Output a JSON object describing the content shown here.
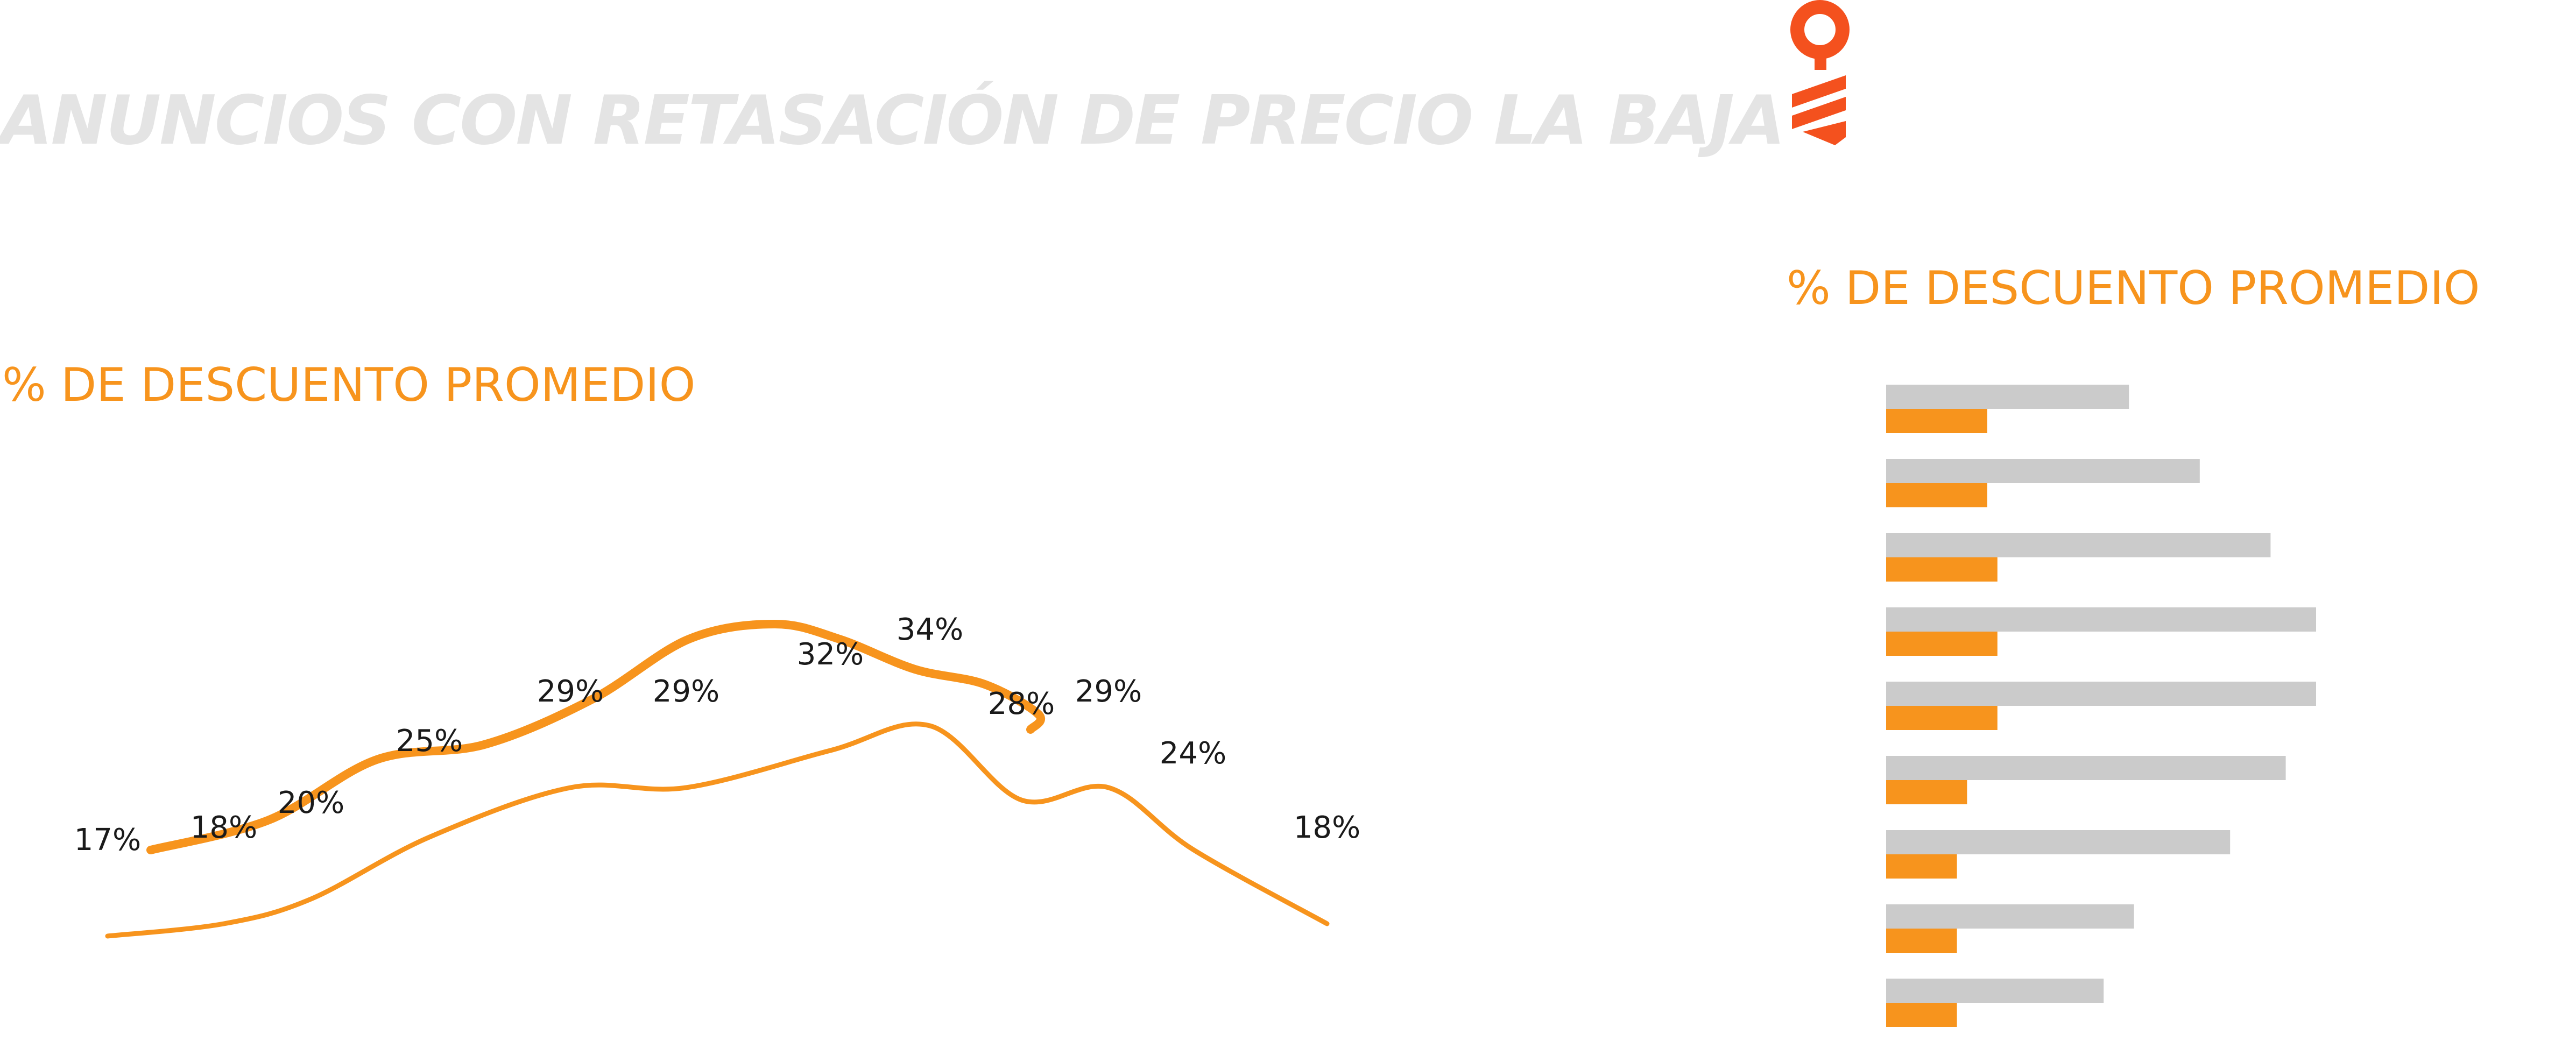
{
  "header": {
    "title": "ANUNCIOS CON RETASACIÓN DE PRECIO LA BAJA"
  },
  "colors": {
    "accent": "#f7941d",
    "title_gray": "#e4e4e4",
    "bar_gray": "#cbcbcb",
    "logo": "#f4511e"
  },
  "logo": {
    "icon": "key-logo-icon"
  },
  "chart_data": [
    {
      "type": "line",
      "title": "% DE DESCUENTO PROMEDIO",
      "series": [
        {
          "values": [
            17,
            18,
            20,
            25,
            29,
            29,
            32,
            34,
            28,
            29,
            24,
            18
          ],
          "labels": [
            "17%",
            "18%",
            "20%",
            "25%",
            "29%",
            "29%",
            "32%",
            "34%",
            "28%",
            "29%",
            "24%",
            "18%"
          ]
        },
        {
          "values": [
            19,
            21,
            25,
            26,
            29,
            33,
            34,
            33,
            31,
            30,
            28,
            27
          ]
        }
      ],
      "grid": false,
      "legend": "none"
    },
    {
      "type": "bar",
      "title": "% DE DESCUENTO PROMEDIO",
      "orientation": "horizontal",
      "series": [
        {
          "values": [
            48,
            62,
            76,
            85,
            85,
            79,
            68,
            49,
            43
          ]
        },
        {
          "values": [
            20,
            20,
            22,
            22,
            22,
            16,
            14,
            14,
            14
          ]
        }
      ],
      "grid": false,
      "legend": "none"
    }
  ]
}
